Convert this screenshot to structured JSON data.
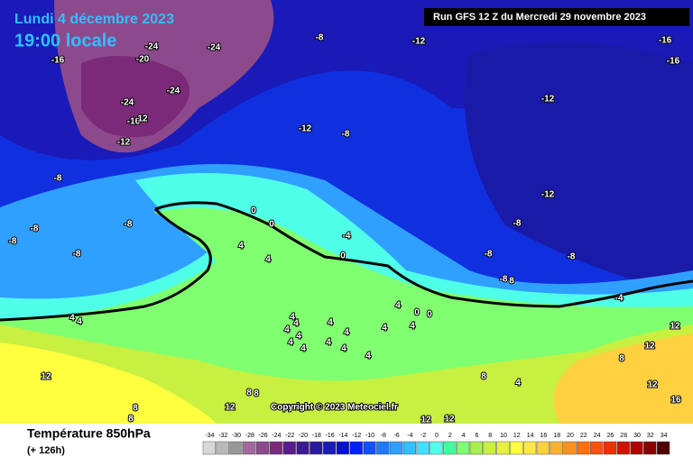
{
  "header": {
    "date": "Lundi 4 décembre 2023",
    "time": "19:00 locale",
    "run": "Run GFS 12 Z du Mercredi 29 novembre 2023"
  },
  "footer": {
    "parameter": "Température 850hPa",
    "lead": "(+ 126h)",
    "copyright": "Copyright © 2023 Meteociel.fr"
  },
  "map_labels": [
    -24,
    -24,
    -8,
    -12,
    -16,
    -16,
    -16,
    -20,
    -24,
    -24,
    -16,
    12,
    -12,
    -12,
    -12,
    -8,
    -8,
    -12,
    -8,
    -8,
    -8,
    -8,
    -8,
    -4,
    -8,
    -8,
    0,
    0,
    0,
    4,
    4,
    -8,
    8,
    -4,
    4,
    0,
    0,
    4,
    4,
    4,
    4,
    4,
    4,
    4,
    4,
    4,
    4,
    4,
    4,
    4,
    4,
    4,
    12,
    12,
    8,
    12,
    8,
    4,
    8,
    8,
    12,
    16,
    12,
    8,
    12,
    12,
    8
  ],
  "color_scale": {
    "values": [
      -34,
      -32,
      -30,
      -28,
      -26,
      -24,
      -22,
      -20,
      -18,
      -16,
      -14,
      -12,
      -10,
      -8,
      -6,
      -4,
      -2,
      0,
      2,
      4,
      6,
      8,
      10,
      12,
      14,
      16,
      18,
      20,
      22,
      24,
      26,
      28,
      30,
      32,
      34
    ],
    "colors": [
      "#d8d8d8",
      "#b8b8b8",
      "#989898",
      "#a06aa0",
      "#8c4a8c",
      "#7a2a78",
      "#5a1a8a",
      "#3a1a90",
      "#2a1aa0",
      "#1a1ab8",
      "#0a10d0",
      "#0020ff",
      "#1050ff",
      "#2078ff",
      "#30a0ff",
      "#30c0ff",
      "#40e0ff",
      "#50ffe8",
      "#40ffa0",
      "#80ff70",
      "#a8f050",
      "#c8f040",
      "#e8f040",
      "#ffff40",
      "#ffe840",
      "#ffd040",
      "#ffb030",
      "#ff9020",
      "#ff7010",
      "#ff5010",
      "#f03000",
      "#d01000",
      "#b00000",
      "#880000",
      "#500000"
    ]
  }
}
